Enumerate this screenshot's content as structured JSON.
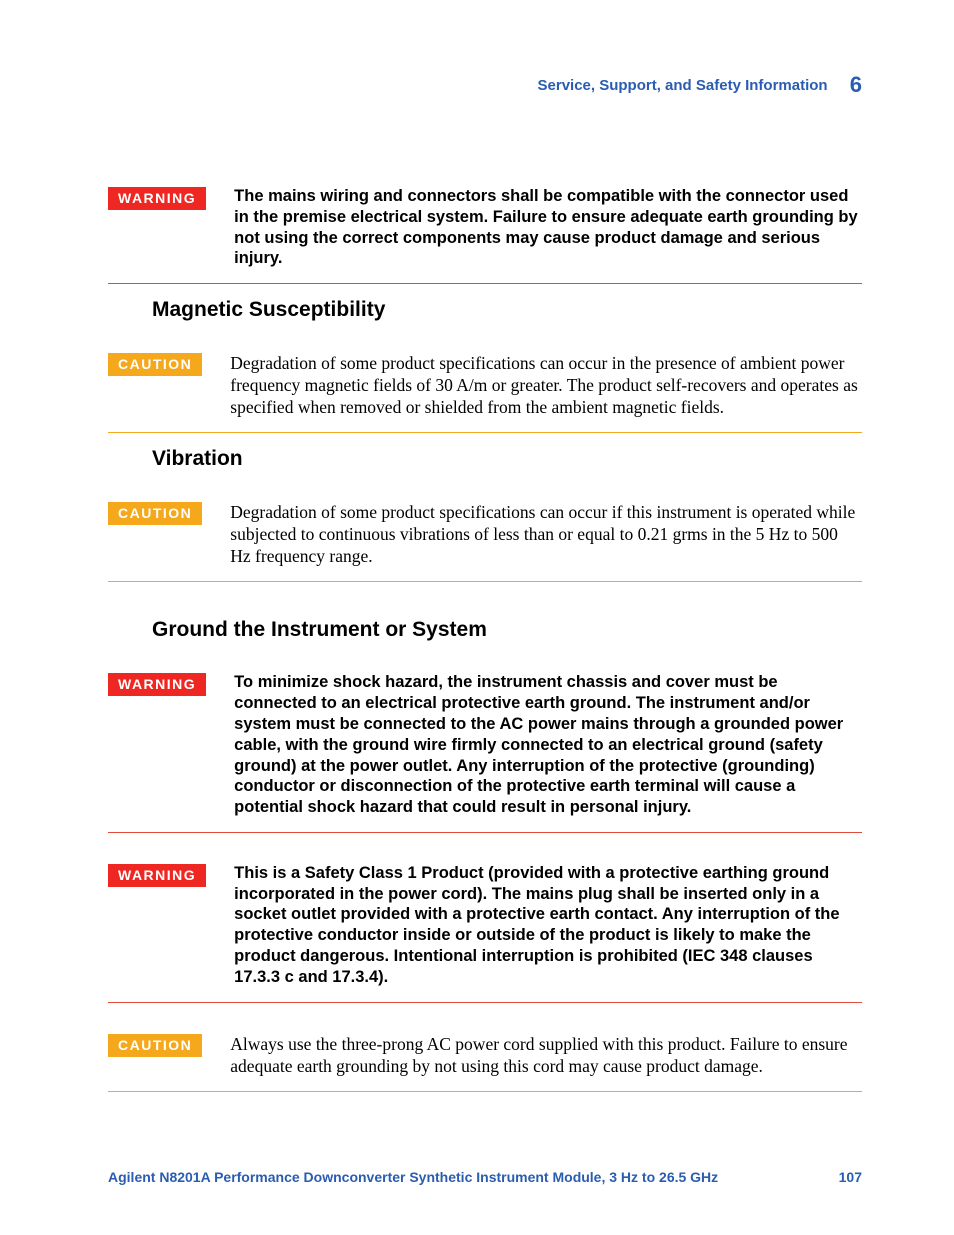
{
  "colors": {
    "warning_bg": "#ee2722",
    "caution_bg": "#f5a81c",
    "divider_red": "#e24a3b",
    "divider_orange": "#f5a81c",
    "header_blue": "#2a5db0",
    "text": "#000000",
    "page_bg": "#ffffff"
  },
  "header": {
    "title": "Service, Support, and Safety Information",
    "chapter_number": "6"
  },
  "labels": {
    "warning": "WARNING",
    "caution": "CAUTION"
  },
  "notices": {
    "n1": "The mains wiring and connectors shall be compatible with the connector used in the premise electrical system. Failure to ensure adequate earth grounding by not using the correct components may cause product damage and serious injury.",
    "n2": "Degradation of some product specifications can occur in the presence of ambient power frequency magnetic fields of 30 A/m or greater. The product self-recovers and operates as specified when removed or shielded from the ambient magnetic fields.",
    "n3": "Degradation of some product specifications can occur if this instrument is operated while subjected to continuous vibrations of less than or equal to 0.21 grms in the 5 Hz to 500 Hz frequency range.",
    "n4": "To minimize shock hazard, the instrument chassis and cover must be connected to an electrical protective earth ground. The instrument and/or system must be connected to the AC power mains through a grounded power cable, with the ground wire firmly connected to an electrical ground (safety ground) at the power outlet. Any interruption of the protective (grounding) conductor or disconnection of the protective earth terminal will cause a potential shock hazard that could result in personal injury.",
    "n5": "This is a Safety Class 1 Product (provided with a protective earthing ground incorporated in the power cord). The mains plug shall be inserted only in a socket outlet provided with a protective earth contact. Any interruption of the protective conductor inside or outside of the product is likely to make the product dangerous. Intentional interruption is prohibited (IEC 348 clauses 17.3.3 c and 17.3.4).",
    "n6": "Always use the three-prong AC power cord supplied with this product. Failure to ensure adequate earth grounding by not using this cord may cause product damage."
  },
  "headings": {
    "h1": "Magnetic Susceptibility",
    "h2": "Vibration",
    "h3": "Ground the Instrument or System"
  },
  "footer": {
    "title": "Agilent N8201A Performance Downconverter Synthetic Instrument Module, 3 Hz to 26.5 GHz",
    "page_number": "107"
  }
}
